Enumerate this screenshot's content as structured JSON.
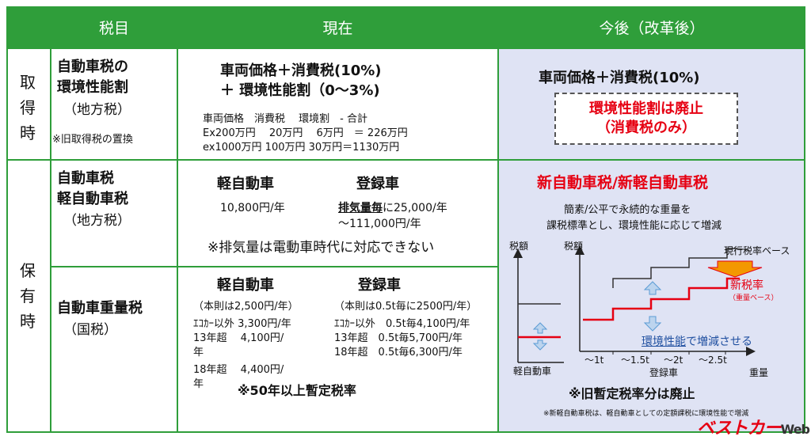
{
  "headers": {
    "col1": "税目",
    "col2": "現在",
    "col3": "今後（改革後）"
  },
  "row_acquisition": {
    "label_chars": [
      "取",
      "得",
      "時"
    ],
    "tax_name_line1": "自動車税の",
    "tax_name_line2": "環境性能割",
    "tax_type": "（地方税）",
    "tax_note": "※旧取得税の置換",
    "current_line1": "車両価格＋消費税(10%)",
    "current_line2": "＋ 環境性能割（0～3%)",
    "calc_header": "車両価格　消費税　 環境割　- 合計",
    "calc_row1": "Ex200万円　 20万円　 6万円　＝ 226万円",
    "calc_row2": "ex1000万円 100万円 30万円＝1130万円",
    "future_line1": "車両価格＋消費税(10%)",
    "future_box_line1": "環境性能割は廃止",
    "future_box_line2": "（消費税のみ）"
  },
  "row_ownership": {
    "label_chars": [
      "保",
      "有",
      "時"
    ],
    "auto_tax": {
      "name_line1": "自動車税",
      "name_line2": "軽自動車税",
      "tax_type": "（地方税）",
      "kei_title": "軽自動車",
      "kei_rate": "10,800円/年",
      "reg_title": "登録車",
      "reg_rate_emph": "排気量毎",
      "reg_rate_rest": "に25,000/年",
      "reg_rate_line2": "～111,000円/年",
      "note": "※排気量は電動車時代に対応できない"
    },
    "weight_tax": {
      "name": "自動車重量税",
      "tax_type": "（国税）",
      "kei_title": "軽自動車",
      "kei_base": "（本則は2,500円/年）",
      "kei_l1": "ｴｺｶｰ以外 3,300円/年",
      "kei_l2": "13年超　 4,100円/",
      "kei_l3": "年",
      "kei_l4": "18年超　 4,400円/",
      "kei_l5": "年",
      "reg_title": "登録車",
      "reg_base": "（本則は0.5t毎に2500円/年）",
      "reg_l1": "ｴｺｶｰ以外　0.5t毎4,100円/年",
      "reg_l2": "13年超　0.5t毎5,700円/年",
      "reg_l3": "18年超　0.5t毎6,300円/年",
      "footnote": "※50年以上暫定税率"
    },
    "future": {
      "title": "新自動車税/新軽自動車税",
      "desc1": "簡素/公平で永続的な重量を",
      "desc2": "課税標準とし、環境性能に応じて増減",
      "abolish": "※旧暫定税率分は廃止",
      "footnote": "※新軽自動車税は、軽自動車としての定額課税に環境性能で増減"
    }
  },
  "diagram": {
    "small_ylabel": "税額",
    "small_xlabel": "軽自動車",
    "big_ylabel": "税額",
    "current_base": "現行税率ベース",
    "new_rate": "新税率",
    "new_rate_sub": "（重量ベース）",
    "env_emph": "環境性能",
    "env_rest": "で増減させる",
    "ticks": [
      "～1t",
      "～1.5t",
      "～2t",
      "～2.5t"
    ],
    "xlabel": "登録車",
    "xlabel_right": "重量",
    "colors": {
      "current": "#333333",
      "new": "#e60012",
      "arrow": "#5b9bd5"
    }
  },
  "watermark": {
    "main": "ベストカー",
    "sub": "Web"
  }
}
